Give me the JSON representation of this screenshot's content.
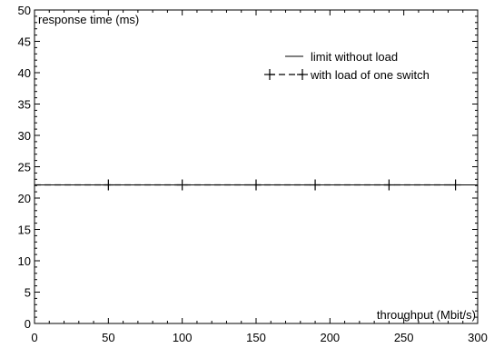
{
  "chart_data": {
    "type": "line",
    "xlabel": "throughput (Mbit/s)",
    "ylabel": "response time (ms)",
    "xlim": [
      0,
      300
    ],
    "ylim": [
      0,
      50
    ],
    "x_ticks": [
      0,
      50,
      100,
      150,
      200,
      250,
      300
    ],
    "y_ticks": [
      0,
      5,
      10,
      15,
      20,
      25,
      30,
      35,
      40,
      45,
      50
    ],
    "grid": false,
    "legend_position": "top-right",
    "series": [
      {
        "name": "limit without load",
        "style": "solid",
        "color": "#000000",
        "x": [
          0,
          300
        ],
        "y": [
          22.1,
          22.1
        ]
      },
      {
        "name": "with load of one switch",
        "style": "dashed",
        "marker": "plus",
        "color": "#000000",
        "x": [
          50,
          100,
          150,
          190,
          240,
          285
        ],
        "y": [
          22.1,
          22.1,
          22.1,
          22.1,
          22.1,
          22.1
        ]
      }
    ]
  }
}
